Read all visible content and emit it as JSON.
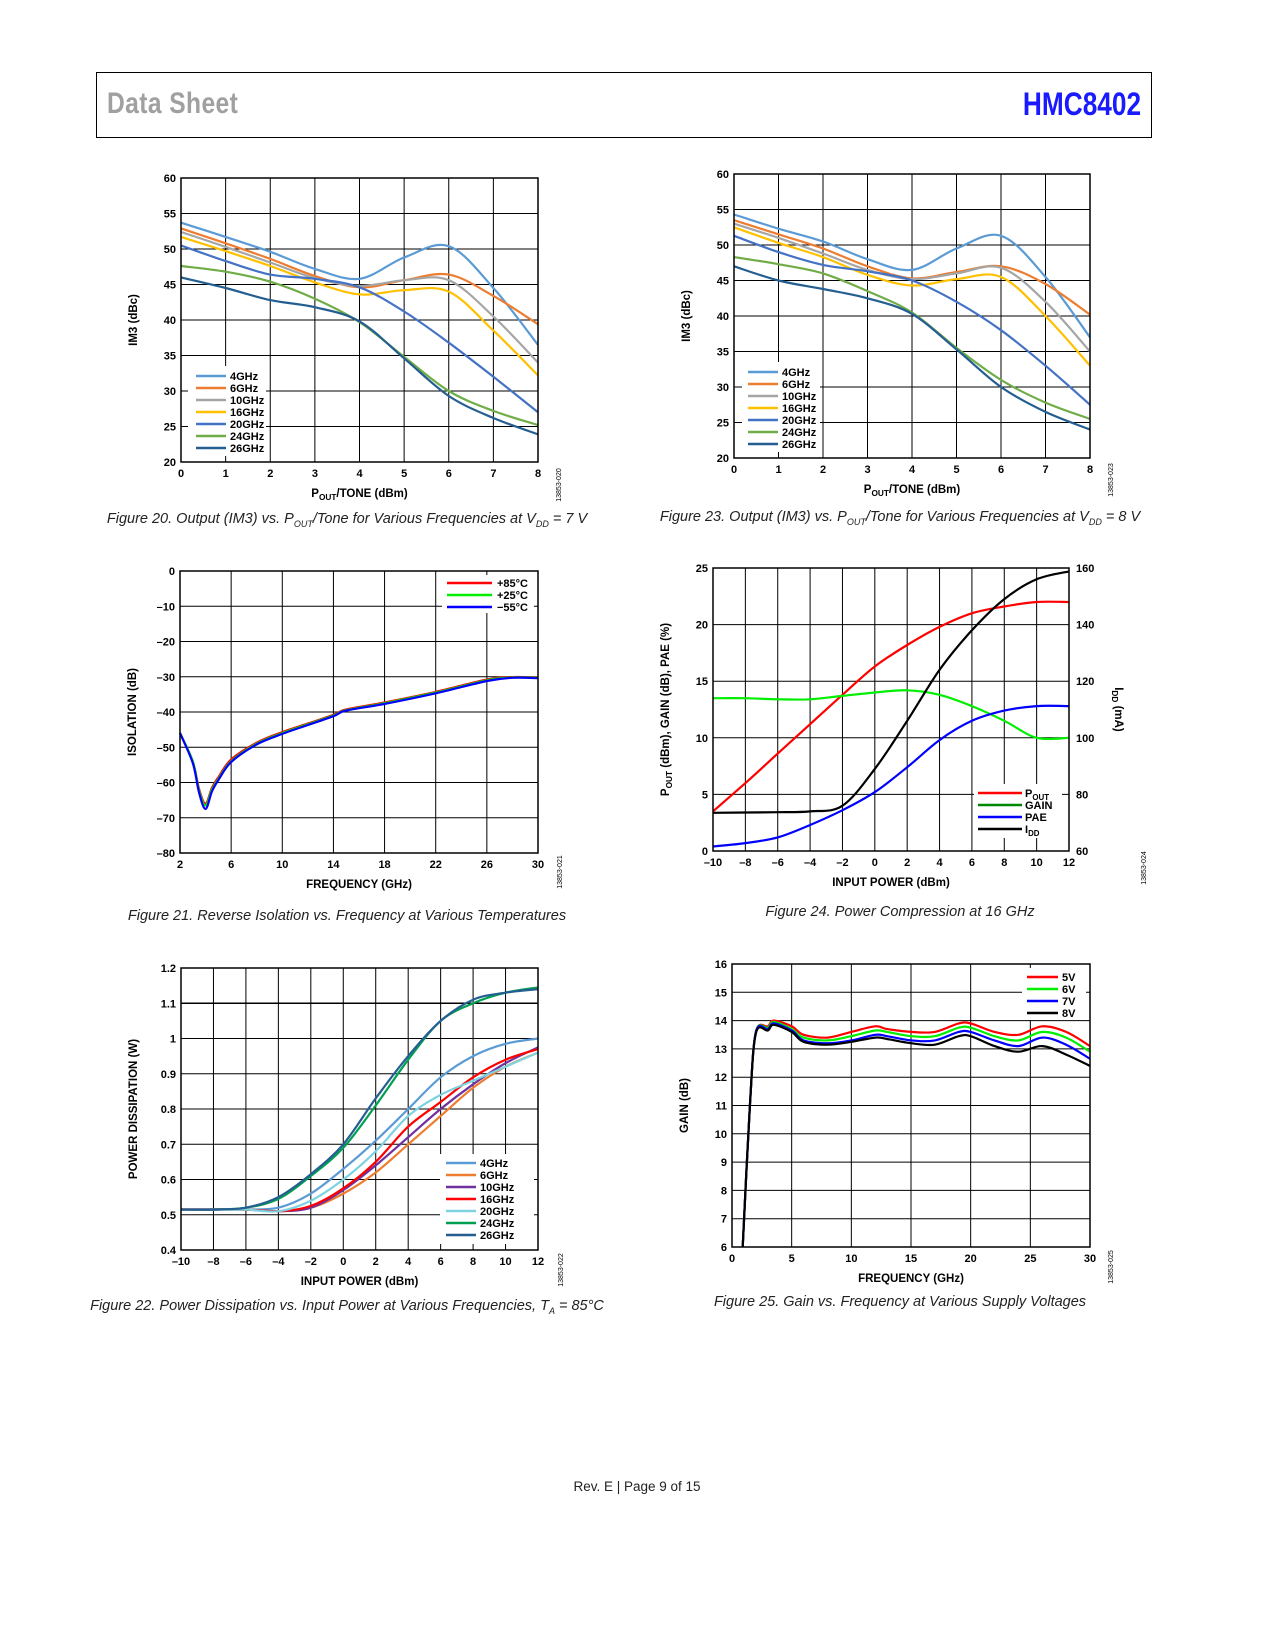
{
  "header": {
    "left": "Data Sheet",
    "right": "HMC8402",
    "right_color": "#1a1aff"
  },
  "footer": "Rev. E | Page 9 of 15",
  "chart_data": [
    {
      "id": "fig20",
      "type": "line",
      "caption": [
        [
          "Figure 20. Output (IM3) vs. P",
          ""
        ],
        [
          "OUT",
          "sub"
        ],
        [
          "/Tone for Various Frequencies at V",
          ""
        ],
        [
          "DD",
          "sub"
        ],
        [
          " = 7 V",
          ""
        ]
      ],
      "xlabel": [
        [
          "P",
          ""
        ],
        [
          "OUT",
          "sub"
        ],
        [
          "/TONE (dBm)",
          ""
        ]
      ],
      "ylabel": [
        [
          "IM3 (dBc)",
          ""
        ]
      ],
      "xlim": [
        0,
        8
      ],
      "ylim": [
        20,
        60
      ],
      "xticks": [
        0,
        1,
        2,
        3,
        4,
        5,
        6,
        7,
        8
      ],
      "yticks": [
        20,
        25,
        30,
        35,
        40,
        45,
        50,
        55,
        60
      ],
      "grid": true,
      "legend": "bottom-left",
      "figure_code": "13853-020",
      "x": [
        0,
        1,
        2,
        3,
        4,
        5,
        6,
        7,
        8
      ],
      "series": [
        {
          "name": "4GHz",
          "color": "#5b9bd5",
          "values": [
            53.7,
            51.7,
            49.6,
            47.2,
            45.8,
            48.8,
            50.4,
            44.5,
            36.5
          ]
        },
        {
          "name": "6GHz",
          "color": "#ed7d31",
          "values": [
            52.9,
            50.8,
            48.6,
            46.2,
            44.6,
            45.6,
            46.4,
            43.4,
            39.4
          ]
        },
        {
          "name": "10GHz",
          "color": "#a5a5a5",
          "values": [
            52.4,
            50.3,
            48.1,
            45.9,
            44.8,
            45.6,
            45.6,
            40.5,
            34.0
          ]
        },
        {
          "name": "16GHz",
          "color": "#ffc000",
          "values": [
            51.7,
            49.7,
            47.6,
            45.3,
            43.6,
            44.2,
            44.0,
            38.5,
            32.2
          ]
        },
        {
          "name": "20GHz",
          "color": "#4472c4",
          "values": [
            50.5,
            48.3,
            46.4,
            45.8,
            44.6,
            41.2,
            36.8,
            32.0,
            27.0
          ]
        },
        {
          "name": "24GHz",
          "color": "#70ad47",
          "values": [
            47.6,
            46.8,
            45.4,
            43.0,
            39.7,
            34.8,
            30.0,
            27.2,
            25.2
          ]
        },
        {
          "name": "26GHz",
          "color": "#255e91",
          "values": [
            46.0,
            44.5,
            42.8,
            41.8,
            39.8,
            34.6,
            29.3,
            26.2,
            23.9
          ]
        }
      ]
    },
    {
      "id": "fig23",
      "type": "line",
      "caption": [
        [
          "Figure 23. Output (IM3) vs. P",
          ""
        ],
        [
          "OUT",
          "sub"
        ],
        [
          "/Tone for Various Frequencies at V",
          ""
        ],
        [
          "DD",
          "sub"
        ],
        [
          " = 8 V",
          ""
        ]
      ],
      "xlabel": [
        [
          "P",
          ""
        ],
        [
          "OUT",
          "sub"
        ],
        [
          "/TONE (dBm)",
          ""
        ]
      ],
      "ylabel": [
        [
          "IM3 (dBc)",
          ""
        ]
      ],
      "xlim": [
        0,
        8
      ],
      "ylim": [
        20,
        60
      ],
      "xticks": [
        0,
        1,
        2,
        3,
        4,
        5,
        6,
        7,
        8
      ],
      "yticks": [
        20,
        25,
        30,
        35,
        40,
        45,
        50,
        55,
        60
      ],
      "grid": true,
      "legend": "bottom-left",
      "figure_code": "13853-023",
      "x": [
        0,
        1,
        2,
        3,
        4,
        5,
        6,
        7,
        8
      ],
      "series": [
        {
          "name": "4GHz",
          "color": "#5b9bd5",
          "values": [
            54.3,
            52.3,
            50.5,
            48.0,
            46.5,
            49.5,
            51.3,
            45.5,
            37.0
          ]
        },
        {
          "name": "6GHz",
          "color": "#ed7d31",
          "values": [
            53.5,
            51.5,
            49.5,
            47.0,
            45.3,
            46.2,
            47.0,
            44.5,
            40.2
          ]
        },
        {
          "name": "10GHz",
          "color": "#a5a5a5",
          "values": [
            53.0,
            51.0,
            48.8,
            46.5,
            45.2,
            46.0,
            46.8,
            42.0,
            35.0
          ]
        },
        {
          "name": "16GHz",
          "color": "#ffc000",
          "values": [
            52.5,
            50.3,
            48.3,
            45.8,
            44.3,
            45.2,
            45.5,
            40.0,
            33.0
          ]
        },
        {
          "name": "20GHz",
          "color": "#4472c4",
          "values": [
            51.3,
            49.0,
            47.2,
            46.3,
            45.0,
            42.0,
            38.0,
            33.0,
            27.5
          ]
        },
        {
          "name": "24GHz",
          "color": "#70ad47",
          "values": [
            48.3,
            47.3,
            46.0,
            43.5,
            40.5,
            35.5,
            31.0,
            27.8,
            25.5
          ]
        },
        {
          "name": "26GHz",
          "color": "#255e91",
          "values": [
            47.0,
            45.0,
            43.8,
            42.5,
            40.3,
            35.3,
            30.0,
            26.5,
            24.0
          ]
        }
      ]
    },
    {
      "id": "fig21",
      "type": "line",
      "caption": [
        [
          "Figure 21. Reverse Isolation vs. Frequency at Various Temperatures",
          ""
        ]
      ],
      "xlabel": [
        [
          "FREQUENCY (GHz)",
          ""
        ]
      ],
      "ylabel": [
        [
          "ISOLATION (dB)",
          ""
        ]
      ],
      "xlim": [
        2,
        30
      ],
      "ylim": [
        -80,
        0
      ],
      "xticks": [
        2,
        6,
        10,
        14,
        18,
        22,
        26,
        30
      ],
      "yticks": [
        -80,
        -70,
        -60,
        -50,
        -40,
        -30,
        -20,
        -10,
        0
      ],
      "grid": true,
      "legend": "top-right",
      "figure_code": "13853-021",
      "x": [
        2,
        3,
        3.5,
        4,
        4.5,
        5,
        6,
        8,
        10,
        12,
        14,
        15,
        18,
        22,
        26,
        28,
        30
      ],
      "series": [
        {
          "name": "+85°C",
          "color": "#ff0000",
          "values": [
            -46,
            -54,
            -62,
            -66,
            -61.5,
            -58.5,
            -53.5,
            -48.7,
            -45.7,
            -43.3,
            -40.8,
            -39.3,
            -37.3,
            -34.3,
            -30.8,
            -30.1,
            -30.2
          ]
        },
        {
          "name": "+25°C",
          "color": "#00ee00",
          "values": [
            -46,
            -54,
            -62.5,
            -66.5,
            -62,
            -59,
            -54,
            -49,
            -46,
            -43.5,
            -41,
            -39.5,
            -37.5,
            -34.5,
            -31,
            -30.2,
            -30.3
          ]
        },
        {
          "name": "−55°C",
          "color": "#0000ff",
          "values": [
            -46,
            -54.5,
            -63,
            -67.5,
            -62.5,
            -59.3,
            -54.2,
            -49.2,
            -46.2,
            -43.7,
            -41.2,
            -39.6,
            -37.7,
            -34.7,
            -31.2,
            -30.3,
            -30.4
          ]
        }
      ]
    },
    {
      "id": "fig24",
      "type": "line",
      "caption": [
        [
          "Figure 24. Power Compression at 16 GHz",
          ""
        ]
      ],
      "xlabel": [
        [
          "INPUT POWER (dBm)",
          ""
        ]
      ],
      "ylabel": [
        [
          "P",
          ""
        ],
        [
          "OUT",
          "sub"
        ],
        [
          " (dBm), GAIN (dB), PAE (%)",
          ""
        ]
      ],
      "y2label": [
        [
          "I",
          ""
        ],
        [
          "DD",
          "sub"
        ],
        [
          " (mA)",
          ""
        ]
      ],
      "xlim": [
        -10,
        12
      ],
      "ylim": [
        0,
        25
      ],
      "y2lim": [
        60,
        160
      ],
      "xticks": [
        -10,
        -8,
        -6,
        -4,
        -2,
        0,
        2,
        4,
        6,
        8,
        10,
        12
      ],
      "yticks": [
        0,
        5,
        10,
        15,
        20,
        25
      ],
      "y2ticks": [
        60,
        80,
        100,
        120,
        140,
        160
      ],
      "grid": true,
      "legend": "bottom-right",
      "figure_code": "13853-024",
      "x": [
        -10,
        -8,
        -6,
        -4,
        -2,
        0,
        2,
        4,
        6,
        8,
        10,
        12
      ],
      "series": [
        {
          "name": [
            [
              "P",
              ""
            ],
            [
              "OUT",
              "sub"
            ]
          ],
          "color": "#ff0000",
          "axis": "left",
          "values": [
            3.5,
            6.0,
            8.6,
            11.2,
            13.8,
            16.3,
            18.2,
            19.8,
            21.0,
            21.6,
            22.0,
            22.0
          ]
        },
        {
          "name": [
            [
              "GAIN",
              ""
            ]
          ],
          "color": "#00ee00",
          "legend_color": "#008800",
          "axis": "left",
          "values": [
            13.5,
            13.5,
            13.4,
            13.4,
            13.7,
            14.0,
            14.2,
            13.8,
            12.8,
            11.5,
            10.0,
            10.0
          ]
        },
        {
          "name": [
            [
              "PAE",
              ""
            ]
          ],
          "color": "#0000ff",
          "axis": "left",
          "values": [
            0.4,
            0.7,
            1.2,
            2.3,
            3.6,
            5.2,
            7.4,
            9.8,
            11.5,
            12.4,
            12.8,
            12.8
          ]
        },
        {
          "name": [
            [
              "I",
              ""
            ],
            [
              "DD",
              "sub"
            ]
          ],
          "color": "#000000",
          "axis": "right",
          "values": [
            73.5,
            73.6,
            73.7,
            74.0,
            76.0,
            89.0,
            106.0,
            124.0,
            138.0,
            149.0,
            156.0,
            158.8
          ]
        }
      ]
    },
    {
      "id": "fig22",
      "type": "line",
      "caption": [
        [
          "Figure 22. Power Dissipation vs. Input Power at Various Frequencies, T",
          ""
        ],
        [
          "A",
          "sub"
        ],
        [
          " = 85°C",
          ""
        ]
      ],
      "xlabel": [
        [
          "INPUT POWER (dBm)",
          ""
        ]
      ],
      "ylabel": [
        [
          "POWER DISSIPATION (W)",
          ""
        ]
      ],
      "xlim": [
        -10,
        12
      ],
      "ylim": [
        0.4,
        1.2
      ],
      "xticks": [
        -10,
        -8,
        -6,
        -4,
        -2,
        0,
        2,
        4,
        6,
        8,
        10,
        12
      ],
      "yticks": [
        0.4,
        0.5,
        0.6,
        0.7,
        0.8,
        0.9,
        1.0,
        1.1,
        1.2
      ],
      "grid": true,
      "legend": "bottom-right",
      "figure_code": "13853-022",
      "x": [
        -10,
        -8,
        -6,
        -4,
        -2,
        0,
        2,
        4,
        6,
        8,
        10,
        12
      ],
      "series": [
        {
          "name": "4GHz",
          "color": "#5b9bd5",
          "values": [
            0.515,
            0.515,
            0.515,
            0.52,
            0.56,
            0.63,
            0.71,
            0.8,
            0.89,
            0.95,
            0.985,
            1.0
          ]
        },
        {
          "name": "6GHz",
          "color": "#ed7d31",
          "values": [
            0.515,
            0.515,
            0.515,
            0.51,
            0.52,
            0.56,
            0.62,
            0.7,
            0.78,
            0.86,
            0.92,
            0.96
          ]
        },
        {
          "name": "10GHz",
          "color": "#7030a0",
          "values": [
            0.515,
            0.515,
            0.515,
            0.51,
            0.52,
            0.57,
            0.64,
            0.72,
            0.8,
            0.87,
            0.93,
            0.975
          ]
        },
        {
          "name": "16GHz",
          "color": "#ff0000",
          "values": [
            0.515,
            0.515,
            0.515,
            0.51,
            0.525,
            0.575,
            0.65,
            0.75,
            0.82,
            0.89,
            0.94,
            0.97
          ]
        },
        {
          "name": "20GHz",
          "color": "#7fd3e0",
          "values": [
            0.515,
            0.515,
            0.515,
            0.51,
            0.54,
            0.6,
            0.68,
            0.78,
            0.84,
            0.88,
            0.92,
            0.96
          ]
        },
        {
          "name": "24GHz",
          "color": "#00a050",
          "values": [
            0.515,
            0.515,
            0.52,
            0.545,
            0.61,
            0.69,
            0.81,
            0.94,
            1.05,
            1.1,
            1.13,
            1.145
          ]
        },
        {
          "name": "26GHz",
          "color": "#255e91",
          "values": [
            0.515,
            0.515,
            0.52,
            0.55,
            0.615,
            0.7,
            0.83,
            0.95,
            1.05,
            1.11,
            1.13,
            1.14
          ]
        }
      ]
    },
    {
      "id": "fig25",
      "type": "line",
      "caption": [
        [
          "Figure 25. Gain vs. Frequency at Various Supply Voltages",
          ""
        ]
      ],
      "xlabel": [
        [
          "FREQUENCY (GHz)",
          ""
        ]
      ],
      "ylabel": [
        [
          "GAIN (dB)",
          ""
        ]
      ],
      "xlim": [
        0,
        30
      ],
      "ylim": [
        6,
        16
      ],
      "xticks": [
        0,
        5,
        10,
        15,
        20,
        25,
        30
      ],
      "yticks": [
        6,
        7,
        8,
        9,
        10,
        11,
        12,
        13,
        14,
        15,
        16
      ],
      "grid": true,
      "legend": "top-right",
      "figure_code": "13853-025",
      "x": [
        0.9,
        1.5,
        2,
        3,
        3.5,
        5,
        6,
        8,
        10,
        12,
        13,
        15,
        17,
        19,
        20,
        22,
        24,
        26,
        28,
        30
      ],
      "series": [
        {
          "name": "5V",
          "color": "#ff0000",
          "values": [
            6,
            11,
            13.6,
            13.8,
            14.0,
            13.8,
            13.5,
            13.4,
            13.6,
            13.8,
            13.7,
            13.6,
            13.6,
            13.9,
            13.9,
            13.6,
            13.5,
            13.8,
            13.6,
            13.1
          ]
        },
        {
          "name": "6V",
          "color": "#00ee00",
          "values": [
            6,
            11,
            13.6,
            13.75,
            13.95,
            13.7,
            13.4,
            13.3,
            13.45,
            13.65,
            13.6,
            13.45,
            13.45,
            13.75,
            13.75,
            13.45,
            13.3,
            13.6,
            13.4,
            12.9
          ]
        },
        {
          "name": "7V",
          "color": "#0000ff",
          "values": [
            6,
            11,
            13.6,
            13.7,
            13.9,
            13.65,
            13.3,
            13.2,
            13.3,
            13.5,
            13.45,
            13.3,
            13.3,
            13.6,
            13.6,
            13.3,
            13.1,
            13.4,
            13.15,
            12.65
          ]
        },
        {
          "name": "8V",
          "color": "#000000",
          "values": [
            6,
            11,
            13.55,
            13.65,
            13.85,
            13.6,
            13.25,
            13.15,
            13.25,
            13.4,
            13.35,
            13.2,
            13.15,
            13.45,
            13.45,
            13.1,
            12.9,
            13.1,
            12.8,
            12.4
          ]
        }
      ]
    }
  ]
}
